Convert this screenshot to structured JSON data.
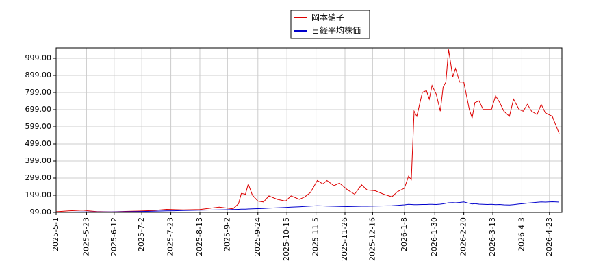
{
  "chart_data": {
    "type": "line",
    "x": [
      "2025-5-1",
      "2025-5-10",
      "2025-5-20",
      "2025-5-30",
      "2025-6-10",
      "2025-6-20",
      "2025-6-30",
      "2025-7-10",
      "2025-7-20",
      "2025-8-1",
      "2025-8-13",
      "2025-8-20",
      "2025-8-27",
      "2025-9-2",
      "2025-9-6",
      "2025-9-10",
      "2025-9-12",
      "2025-9-15",
      "2025-9-17",
      "2025-9-20",
      "2025-9-24",
      "2025-9-28",
      "2025-10-2",
      "2025-10-8",
      "2025-10-14",
      "2025-10-18",
      "2025-10-24",
      "2025-10-28",
      "2025-11-1",
      "2025-11-6",
      "2025-11-10",
      "2025-11-13",
      "2025-11-18",
      "2025-11-22",
      "2025-11-28",
      "2025-12-3",
      "2025-12-8",
      "2025-12-12",
      "2025-12-18",
      "2025-12-24",
      "2025-12-30",
      "2026-1-3",
      "2026-1-8",
      "2026-1-11",
      "2026-1-13",
      "2026-1-15",
      "2026-1-17",
      "2026-1-21",
      "2026-1-24",
      "2026-1-26",
      "2026-1-28",
      "2026-1-31",
      "2026-2-3",
      "2026-2-5",
      "2026-2-7",
      "2026-2-9",
      "2026-2-12",
      "2026-2-14",
      "2026-2-17",
      "2026-2-20",
      "2026-2-24",
      "2026-2-26",
      "2026-2-28",
      "2026-3-3",
      "2026-3-6",
      "2026-3-9",
      "2026-3-12",
      "2026-3-15",
      "2026-3-18",
      "2026-3-21",
      "2026-3-25",
      "2026-3-28",
      "2026-4-1",
      "2026-4-4",
      "2026-4-7",
      "2026-4-10",
      "2026-4-14",
      "2026-4-17",
      "2026-4-20",
      "2026-4-25",
      "2026-4-28",
      "2026-4-30"
    ],
    "series": [
      {
        "name": "岡本硝子",
        "color": "#dd0000",
        "values": [
          103,
          108,
          112,
          104,
          102,
          105,
          107,
          110,
          117,
          114,
          116,
          123,
          130,
          124,
          120,
          150,
          210,
          205,
          265,
          200,
          165,
          160,
          195,
          175,
          165,
          195,
          175,
          190,
          215,
          285,
          265,
          285,
          255,
          270,
          230,
          205,
          260,
          230,
          225,
          205,
          190,
          220,
          240,
          310,
          290,
          690,
          660,
          800,
          810,
          760,
          840,
          790,
          690,
          830,
          860,
          1050,
          890,
          940,
          860,
          860,
          700,
          650,
          740,
          750,
          700,
          700,
          700,
          780,
          740,
          690,
          660,
          760,
          700,
          690,
          730,
          690,
          670,
          730,
          680,
          660,
          600,
          560
        ]
      },
      {
        "name": "日経平均株価",
        "color": "#0000cc",
        "values": [
          101,
          101,
          102,
          102,
          102,
          103,
          104,
          106,
          108,
          110,
          112,
          113,
          114,
          115,
          116,
          117,
          118,
          118,
          119,
          120,
          121,
          122,
          124,
          126,
          128,
          130,
          132,
          134,
          136,
          138,
          137,
          136,
          135,
          134,
          133,
          134,
          135,
          135,
          136,
          137,
          138,
          140,
          143,
          146,
          145,
          144,
          144,
          145,
          145,
          146,
          146,
          145,
          147,
          149,
          152,
          155,
          156,
          155,
          157,
          160,
          152,
          148,
          150,
          147,
          146,
          145,
          146,
          144,
          145,
          143,
          142,
          144,
          148,
          150,
          153,
          155,
          158,
          160,
          159,
          161,
          160,
          159
        ]
      }
    ],
    "xlim": [
      "2025-5-1",
      "2026-5-2"
    ],
    "xticks": [
      "2025-5-1",
      "2025-5-23",
      "2025-6-12",
      "2025-7-2",
      "2025-7-23",
      "2025-8-13",
      "2025-9-2",
      "2025-9-24",
      "2025-10-15",
      "2025-11-5",
      "2025-11-26",
      "2025-12-16",
      "2026-1-8",
      "2026-1-30",
      "2026-2-20",
      "2026-3-13",
      "2026-4-3",
      "2026-4-23"
    ],
    "ylim": [
      99,
      1059
    ],
    "yticks": [
      {
        "value": 99,
        "label": "99.00"
      },
      {
        "value": 199,
        "label": "199.00"
      },
      {
        "value": 299,
        "label": "299.00"
      },
      {
        "value": 399,
        "label": "399.00"
      },
      {
        "value": 499,
        "label": "499.00"
      },
      {
        "value": 599,
        "label": "599.00"
      },
      {
        "value": 699,
        "label": "699.00"
      },
      {
        "value": 799,
        "label": "799.00"
      },
      {
        "value": 899,
        "label": "899.00"
      },
      {
        "value": 999,
        "label": "999.00"
      }
    ],
    "grid": true,
    "legend": "top"
  }
}
